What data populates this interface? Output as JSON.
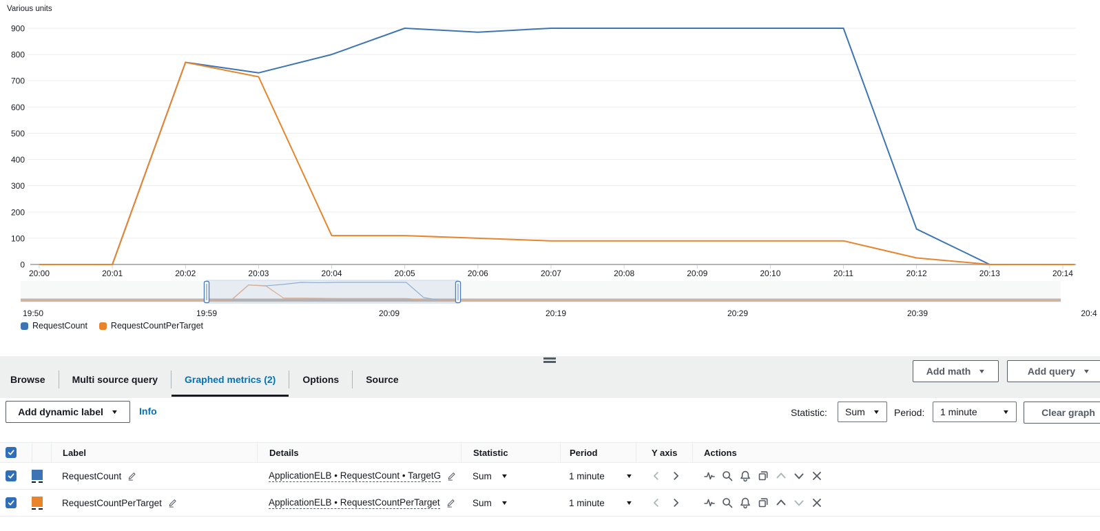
{
  "chart_data": {
    "type": "line",
    "title": "Various units",
    "ylim": [
      0,
      900
    ],
    "y_ticks": [
      0,
      100,
      200,
      300,
      400,
      500,
      600,
      700,
      800,
      900
    ],
    "x_labels": [
      "20:00",
      "20:01",
      "20:02",
      "20:03",
      "20:04",
      "20:05",
      "20:06",
      "20:07",
      "20:08",
      "20:09",
      "20:10",
      "20:11",
      "20:12",
      "20:13",
      "20:14"
    ],
    "grid": true,
    "legend_position": "bottom-left",
    "series": [
      {
        "name": "RequestCount",
        "color": "#3d74b3",
        "values": [
          0,
          0,
          770,
          730,
          800,
          900,
          885,
          900,
          900,
          900,
          900,
          900,
          135,
          0,
          0
        ]
      },
      {
        "name": "RequestCountPerTarget",
        "color": "#e8842c",
        "values": [
          0,
          0,
          770,
          715,
          110,
          110,
          100,
          90,
          90,
          90,
          90,
          90,
          25,
          0,
          0
        ]
      }
    ],
    "timeline": {
      "labels": [
        "19:50",
        "19:59",
        "20:09",
        "20:19",
        "20:29",
        "20:39",
        "20:4"
      ],
      "selection_start_label": "20:00",
      "selection_end_label": "20:14"
    }
  },
  "legend": {
    "items": [
      {
        "label": "RequestCount",
        "color": "#3d74b3"
      },
      {
        "label": "RequestCountPerTarget",
        "color": "#e8842c"
      }
    ]
  },
  "tabs": {
    "items": [
      "Browse",
      "Multi source query",
      "Graphed metrics (2)",
      "Options",
      "Source"
    ],
    "active": "Graphed metrics (2)"
  },
  "toolbar": {
    "add_math_label": "Add math",
    "add_query_label": "Add query"
  },
  "controls": {
    "add_dynamic_label": "Add dynamic label",
    "info_label": "Info",
    "statistic_label": "Statistic:",
    "statistic_value": "Sum",
    "period_label": "Period:",
    "period_value": "1 minute",
    "clear_graph_label": "Clear graph"
  },
  "table": {
    "columns": [
      "Label",
      "Details",
      "Statistic",
      "Period",
      "Y axis",
      "Actions"
    ],
    "action_icons": [
      "pulse",
      "search",
      "alarm",
      "duplicate",
      "move-up",
      "move-down",
      "remove"
    ],
    "rows": [
      {
        "selected": true,
        "color": "#3d74b3",
        "label": "RequestCount",
        "details": "ApplicationELB • RequestCount • TargetG",
        "statistic": "Sum",
        "period": "1 minute",
        "prev_enabled": false,
        "next_enabled": true,
        "move_up_enabled": false,
        "move_down_enabled": true
      },
      {
        "selected": true,
        "color": "#e8842c",
        "label": "RequestCountPerTarget",
        "details": "ApplicationELB • RequestCountPerTarget",
        "statistic": "Sum",
        "period": "1 minute",
        "prev_enabled": false,
        "next_enabled": true,
        "move_up_enabled": true,
        "move_down_enabled": false
      }
    ]
  },
  "colors": {
    "accent_blue": "#0073bb",
    "checkbox_blue": "#2e6fb7",
    "button_gray": "#545b64",
    "panel_gray": "#eef0f0"
  }
}
